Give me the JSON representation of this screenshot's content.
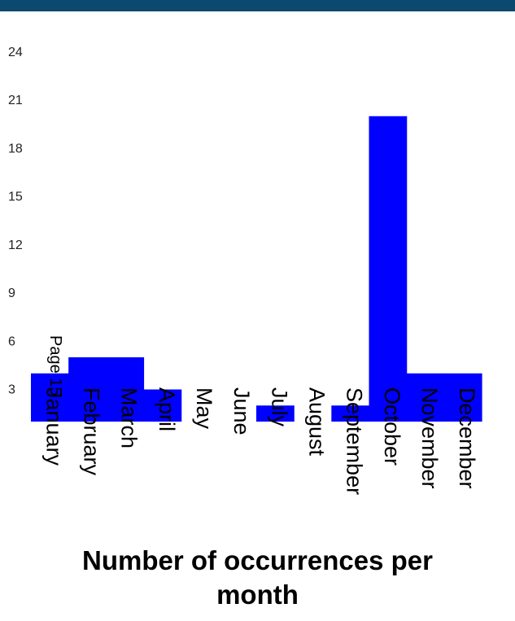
{
  "chart_data": {
    "type": "bar",
    "title_lines": [
      "Number of occurrences per",
      "month"
    ],
    "categories": [
      "January",
      "February",
      "March",
      "April",
      "May",
      "June",
      "July",
      "August",
      "September",
      "October",
      "November",
      "December"
    ],
    "values": [
      4,
      5,
      5,
      3,
      0,
      0,
      2,
      0,
      2,
      20,
      4,
      4
    ],
    "y_ticks": [
      3,
      6,
      9,
      12,
      15,
      18,
      21,
      24
    ],
    "ylim": [
      1,
      25
    ],
    "bar_color": "#0000ff",
    "grid": false,
    "annotation": "Page 15"
  },
  "colors": {
    "header_bar": "#0b4a6e",
    "bar": "#0000ff"
  }
}
